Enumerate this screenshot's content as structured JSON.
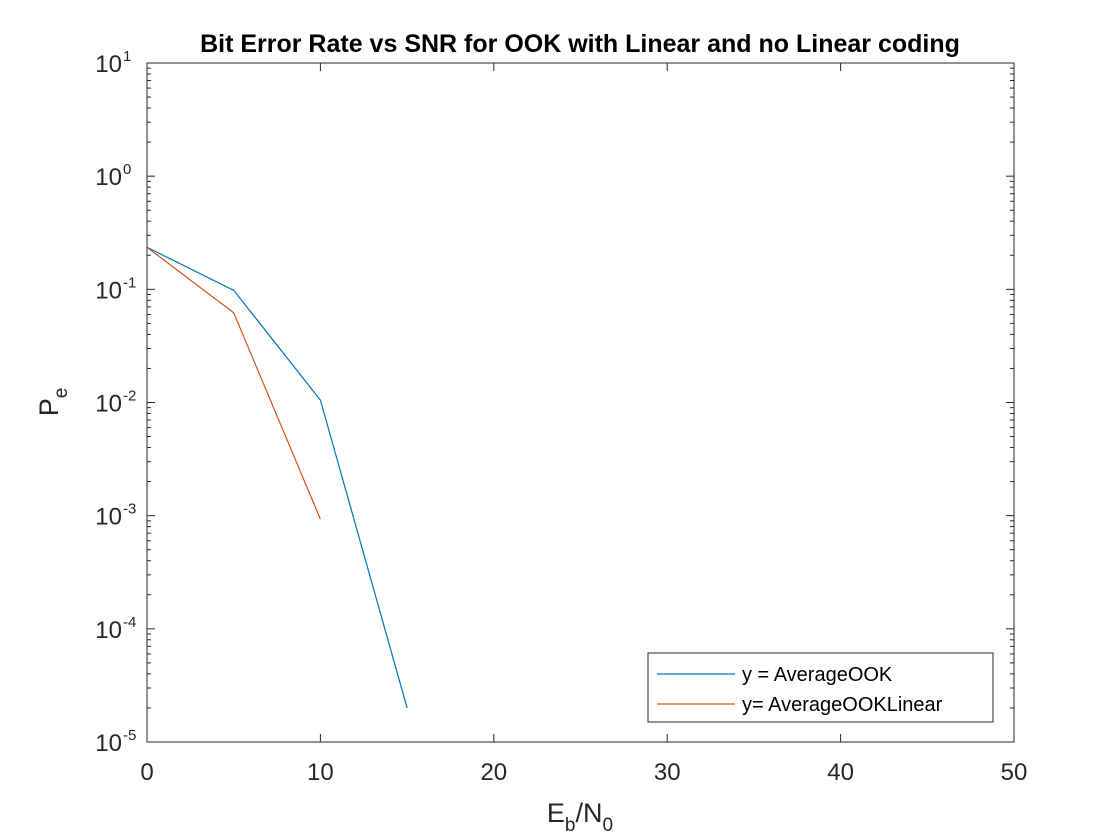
{
  "chart_data": {
    "type": "line",
    "title": "Bit Error Rate vs SNR for OOK with Linear and no Linear coding",
    "xlabel": {
      "main": "E",
      "sub1": "b",
      "slash": "/N",
      "sub2": "0"
    },
    "ylabel": {
      "main": "P",
      "sub": "e"
    },
    "xlim": [
      0,
      50
    ],
    "ylim": [
      1e-05,
      10
    ],
    "yscale": "log",
    "grid": false,
    "legend_position": "bottom-right",
    "x_ticks": [
      {
        "value": 0,
        "label": "0"
      },
      {
        "value": 10,
        "label": "10"
      },
      {
        "value": 20,
        "label": "20"
      },
      {
        "value": 30,
        "label": "30"
      },
      {
        "value": 40,
        "label": "40"
      },
      {
        "value": 50,
        "label": "50"
      }
    ],
    "y_ticks": [
      {
        "value": 1e-05,
        "base": "10",
        "exp": "-5"
      },
      {
        "value": 0.0001,
        "base": "10",
        "exp": "-4"
      },
      {
        "value": 0.001,
        "base": "10",
        "exp": "-3"
      },
      {
        "value": 0.01,
        "base": "10",
        "exp": "-2"
      },
      {
        "value": 0.1,
        "base": "10",
        "exp": "-1"
      },
      {
        "value": 1,
        "base": "10",
        "exp": "0"
      },
      {
        "value": 10,
        "base": "10",
        "exp": "1"
      }
    ],
    "series": [
      {
        "name": "y = AverageOOK",
        "color": "#0072BD",
        "x": [
          0,
          5,
          10,
          15
        ],
        "y": [
          0.235,
          0.098,
          0.0105,
          2e-05
        ]
      },
      {
        "name": "y= AverageOOKLinear",
        "color": "#D95319",
        "x": [
          0,
          5,
          10
        ],
        "y": [
          0.235,
          0.062,
          0.00093
        ]
      }
    ]
  }
}
